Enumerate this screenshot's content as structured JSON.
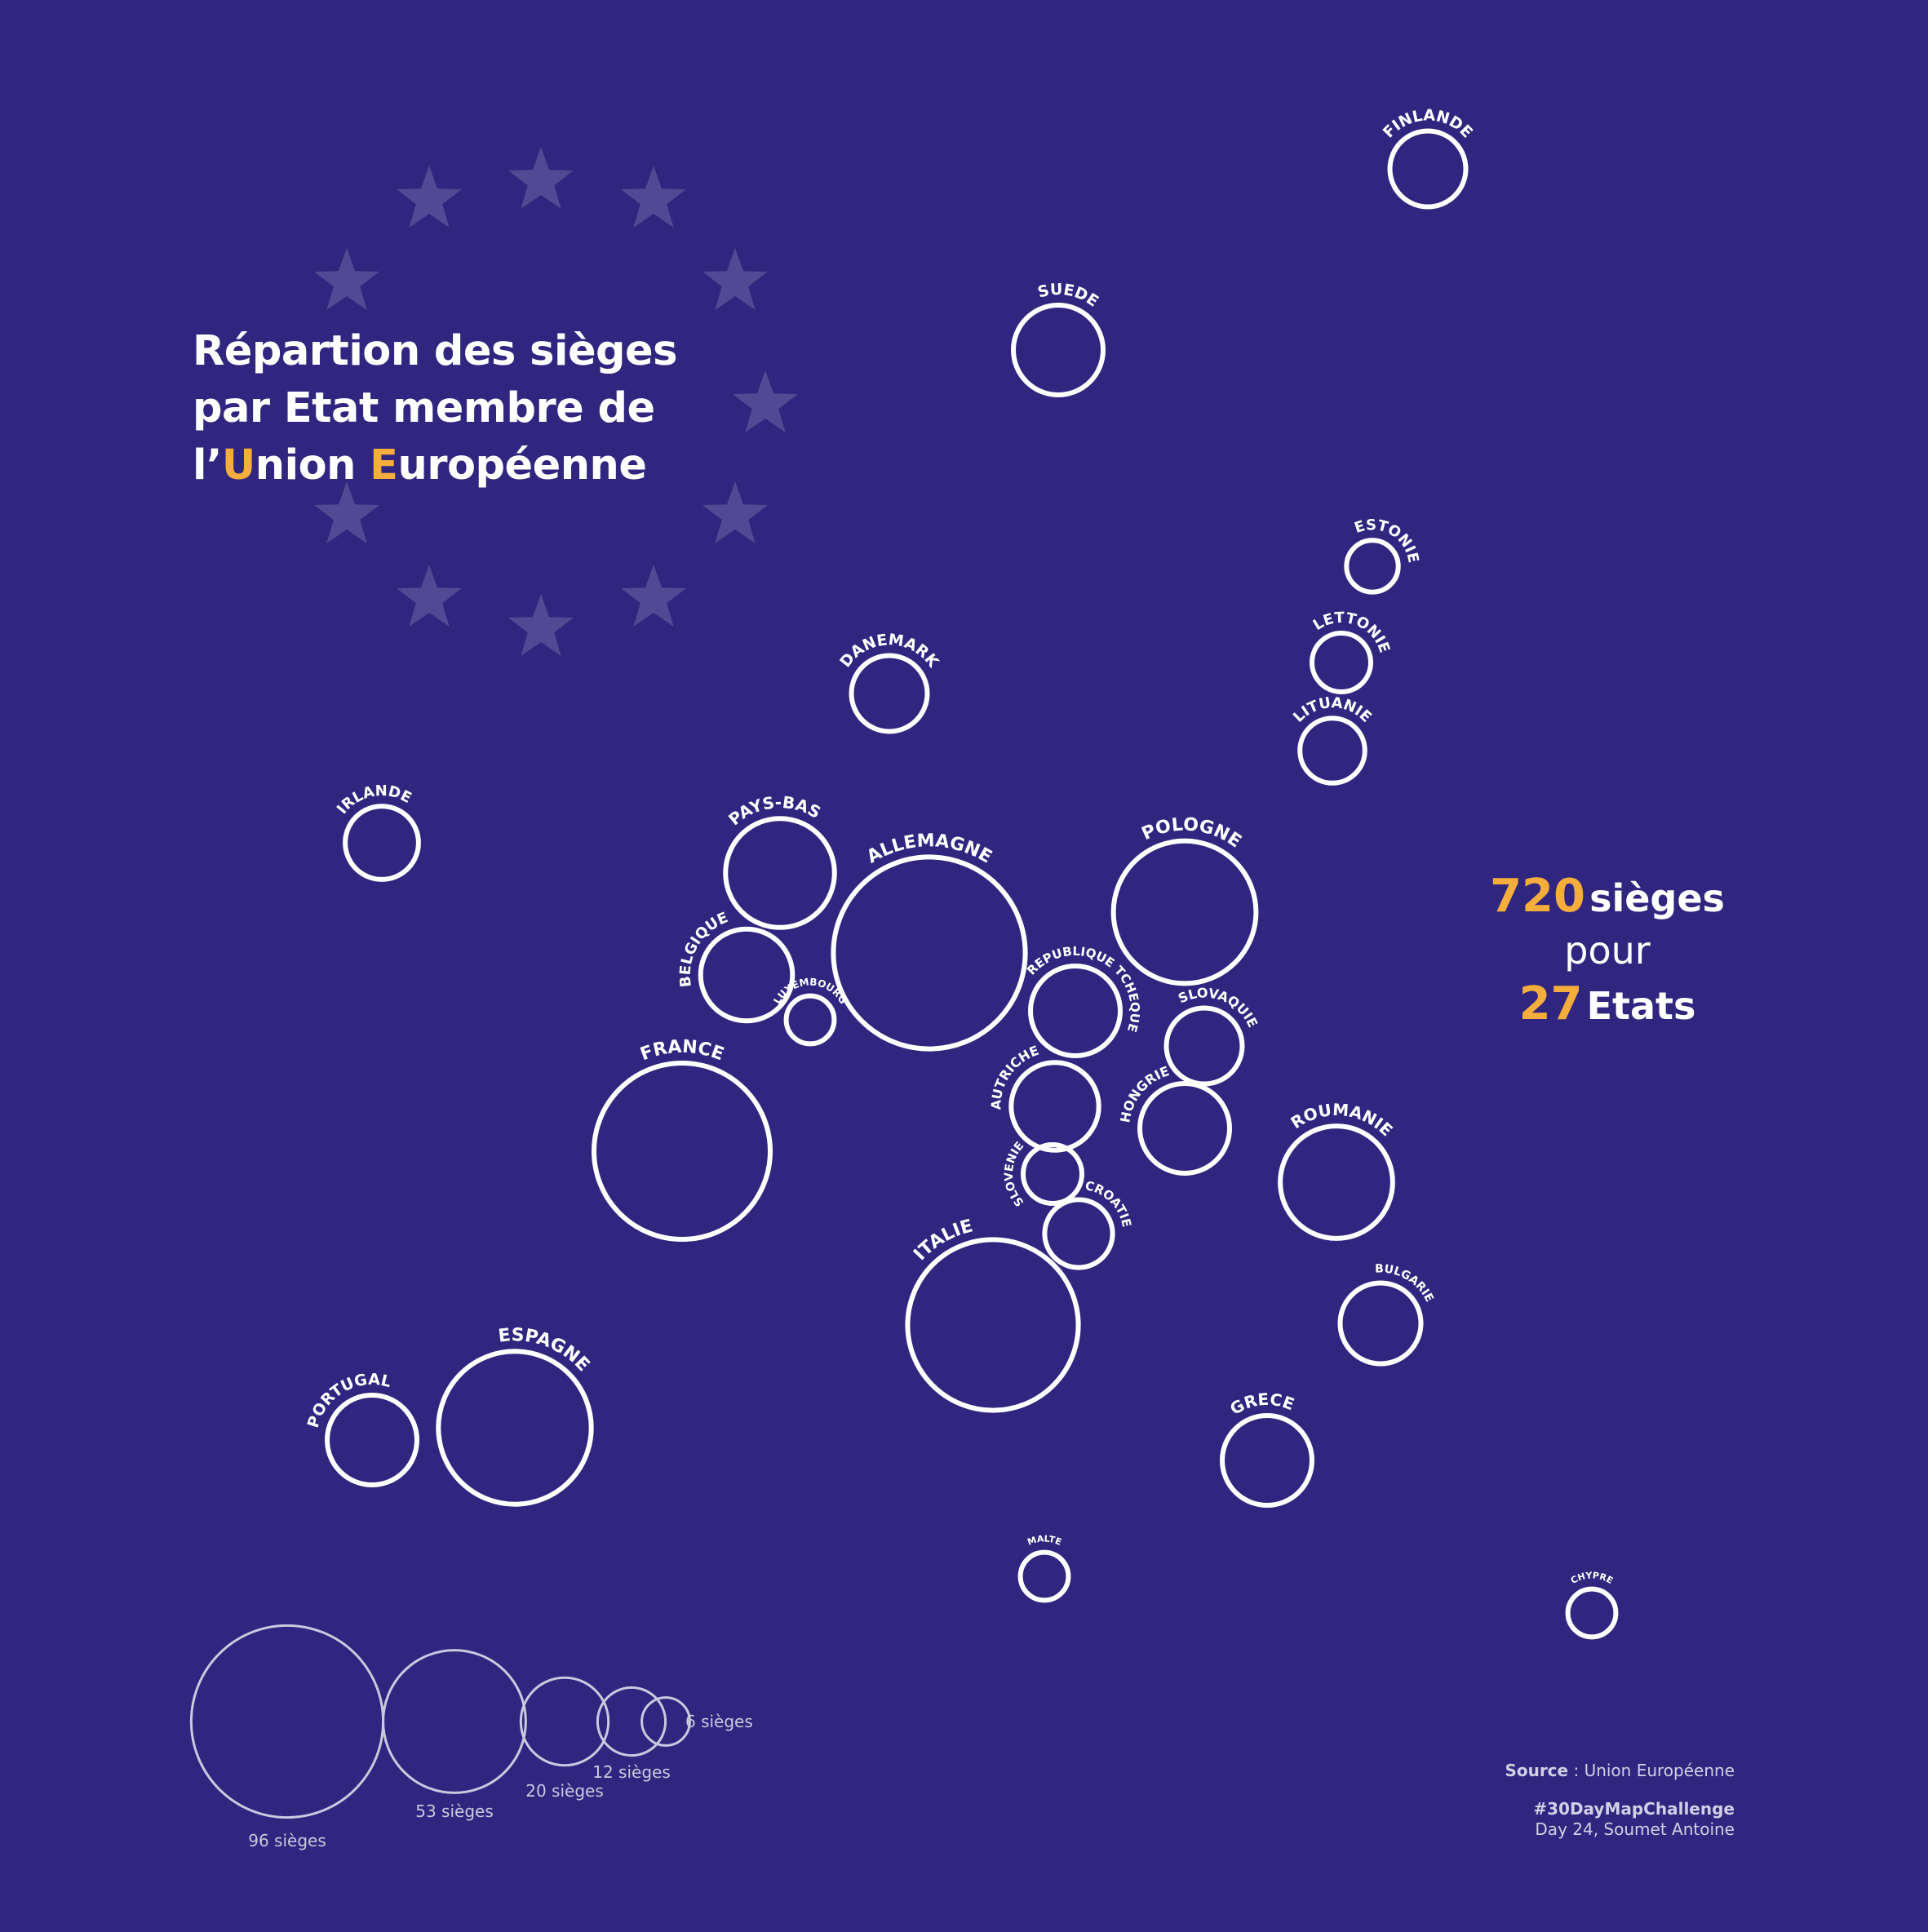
{
  "title": {
    "line1": "Répartion des sièges",
    "line2": "par Etat membre de",
    "line3_a": "l’",
    "line3_u": "U",
    "line3_b": "nion ",
    "line3_e": "E",
    "line3_c": "uropéenne"
  },
  "summary": {
    "seats_number": "720",
    "seats_word": "sièges",
    "connector": "pour",
    "states_number": "27",
    "states_word": "Etats"
  },
  "credits": {
    "source_label": "Source",
    "source_rest": " : Union Européenne",
    "hashtag": "#30DayMapChallenge",
    "author": "Day 24, Soumet Antoine"
  },
  "colors": {
    "background": "#31267f",
    "accent": "#f5ad3c",
    "circle_stroke": "#ffffff",
    "legend_stroke": "#cbc8df",
    "star": "#ffffff"
  },
  "icons": {
    "decoration": "eu-flag-star-icon"
  },
  "chart_data": {
    "type": "proportional-symbol-map",
    "unit": "sièges",
    "total_seats": 720,
    "states_count": 27,
    "countries": [
      {
        "name": "ALLEMAGNE",
        "seats": 96
      },
      {
        "name": "FRANCE",
        "seats": 81
      },
      {
        "name": "ITALIE",
        "seats": 76
      },
      {
        "name": "ESPAGNE",
        "seats": 61
      },
      {
        "name": "POLOGNE",
        "seats": 53
      },
      {
        "name": "ROUMANIE",
        "seats": 33
      },
      {
        "name": "PAYS-BAS",
        "seats": 31
      },
      {
        "name": "BELGIQUE",
        "seats": 22
      },
      {
        "name": "REPUBLIQUE TCHEQUE",
        "seats": 21
      },
      {
        "name": "GRECE",
        "seats": 21
      },
      {
        "name": "SUEDE",
        "seats": 21
      },
      {
        "name": "PORTUGAL",
        "seats": 21
      },
      {
        "name": "HONGRIE",
        "seats": 21
      },
      {
        "name": "AUTRICHE",
        "seats": 20
      },
      {
        "name": "BULGARIE",
        "seats": 17
      },
      {
        "name": "DANEMARK",
        "seats": 15
      },
      {
        "name": "FINLANDE",
        "seats": 15
      },
      {
        "name": "SLOVAQUIE",
        "seats": 15
      },
      {
        "name": "IRLANDE",
        "seats": 14
      },
      {
        "name": "CROATIE",
        "seats": 12
      },
      {
        "name": "LITUANIE",
        "seats": 11
      },
      {
        "name": "LETTONIE",
        "seats": 9
      },
      {
        "name": "SLOVENIE",
        "seats": 9
      },
      {
        "name": "ESTONIE",
        "seats": 7
      },
      {
        "name": "CHYPRE",
        "seats": 6
      },
      {
        "name": "LUXEMBOURG",
        "seats": 6
      },
      {
        "name": "MALTE",
        "seats": 6
      }
    ],
    "legend": [
      {
        "seats": 96,
        "label": "96 sièges"
      },
      {
        "seats": 53,
        "label": "53 sièges"
      },
      {
        "seats": 20,
        "label": "20 sièges"
      },
      {
        "seats": 12,
        "label": "12 sièges"
      },
      {
        "seats": 6,
        "label": "6 sièges"
      }
    ]
  }
}
